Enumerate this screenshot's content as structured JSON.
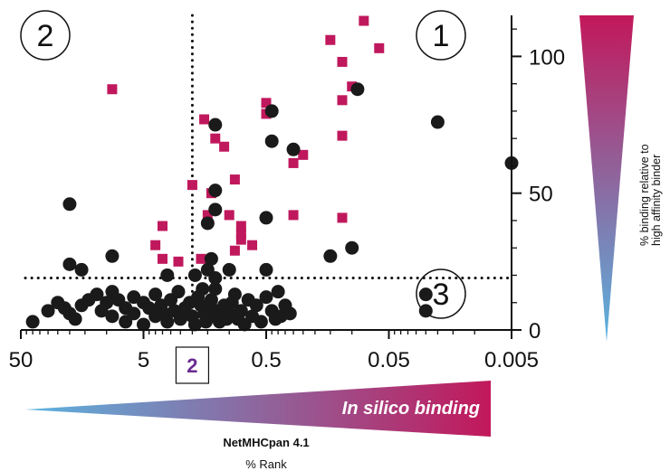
{
  "chart_data": {
    "type": "scatter",
    "x_axis": {
      "scale": "log-reversed",
      "range": [
        50,
        0.005
      ],
      "ticks": [
        50,
        5,
        0.5,
        0.05,
        0.005
      ],
      "tick_labels": [
        "50",
        "5",
        "0.5",
        "0.05",
        "0.005"
      ],
      "highlighted_tick": "2",
      "highlighted_tick_value": 2,
      "gradient_label": "In silico binding",
      "label_line1": "NetMHCpan 4.1",
      "label_line2": "% Rank"
    },
    "y_axis": {
      "range": [
        0,
        115
      ],
      "ticks": [
        0,
        50,
        100
      ],
      "tick_labels": [
        "0",
        "50",
        "100"
      ],
      "position": "right",
      "label_line1": "% binding relative to",
      "label_line2": "high affinity binder"
    },
    "thresholds": {
      "x": 2,
      "y": 19
    },
    "regions": [
      "1",
      "2",
      "3"
    ],
    "colors": {
      "circle": "#1a1a1a",
      "square": "#c0185c",
      "gradient_low": "#5ab4e0",
      "gradient_high": "#c2185b"
    },
    "series": [
      {
        "marker": "square",
        "points": [
          [
            0.08,
            113
          ],
          [
            0.15,
            106
          ],
          [
            0.06,
            103
          ],
          [
            0.12,
            98
          ],
          [
            0.1,
            89
          ],
          [
            9,
            88
          ],
          [
            0.5,
            83
          ],
          [
            0.5,
            79
          ],
          [
            0.12,
            84
          ],
          [
            1.6,
            77
          ],
          [
            1.3,
            70
          ],
          [
            1.1,
            67
          ],
          [
            0.12,
            71
          ],
          [
            0.25,
            64
          ],
          [
            0.3,
            61
          ],
          [
            2,
            53
          ],
          [
            1.4,
            50
          ],
          [
            0.9,
            55
          ],
          [
            1.5,
            42
          ],
          [
            1.0,
            42
          ],
          [
            0.3,
            42
          ],
          [
            0.12,
            41
          ],
          [
            3.5,
            38
          ],
          [
            0.8,
            38
          ],
          [
            0.8,
            35
          ],
          [
            0.8,
            33
          ],
          [
            4,
            31
          ],
          [
            0.9,
            29
          ],
          [
            0.65,
            31
          ],
          [
            3.5,
            26
          ],
          [
            2.6,
            25
          ],
          [
            1.7,
            26
          ]
        ]
      },
      {
        "marker": "circle",
        "points": [
          [
            0.09,
            88
          ],
          [
            0.45,
            80
          ],
          [
            1.3,
            75
          ],
          [
            0.02,
            76
          ],
          [
            0.45,
            69
          ],
          [
            0.3,
            66
          ],
          [
            0.005,
            61
          ],
          [
            1.3,
            51
          ],
          [
            20,
            46
          ],
          [
            1.3,
            44
          ],
          [
            0.5,
            41
          ],
          [
            1.5,
            39
          ],
          [
            0.1,
            30
          ],
          [
            0.15,
            27
          ],
          [
            1.4,
            26
          ],
          [
            9,
            27
          ],
          [
            20,
            24
          ],
          [
            16,
            22
          ],
          [
            1.5,
            22
          ],
          [
            1.0,
            22
          ],
          [
            0.5,
            22
          ],
          [
            3.2,
            20
          ],
          [
            1.9,
            20
          ],
          [
            1.3,
            19
          ],
          [
            0.025,
            13
          ],
          [
            0.025,
            7
          ],
          [
            25,
            10
          ],
          [
            22,
            8
          ],
          [
            20,
            6
          ],
          [
            18,
            4
          ],
          [
            16,
            9
          ],
          [
            14,
            11
          ],
          [
            12,
            13
          ],
          [
            11,
            7
          ],
          [
            10,
            10
          ],
          [
            9,
            14
          ],
          [
            9,
            5
          ],
          [
            8,
            11
          ],
          [
            7,
            8
          ],
          [
            7,
            3
          ],
          [
            6,
            12
          ],
          [
            6,
            6
          ],
          [
            5,
            10
          ],
          [
            5,
            2
          ],
          [
            4.5,
            8
          ],
          [
            4,
            5
          ],
          [
            4,
            13
          ],
          [
            3.6,
            9
          ],
          [
            3.4,
            6
          ],
          [
            3.2,
            3
          ],
          [
            3,
            11
          ],
          [
            2.8,
            7
          ],
          [
            2.6,
            14
          ],
          [
            2.5,
            4
          ],
          [
            2.3,
            8
          ],
          [
            2.1,
            10
          ],
          [
            2,
            5
          ],
          [
            1.9,
            2
          ],
          [
            1.8,
            12
          ],
          [
            1.7,
            9
          ],
          [
            1.6,
            6
          ],
          [
            1.55,
            3
          ],
          [
            1.5,
            8
          ],
          [
            1.4,
            11
          ],
          [
            1.35,
            5
          ],
          [
            1.3,
            15
          ],
          [
            1.25,
            7
          ],
          [
            1.2,
            3
          ],
          [
            1.1,
            9
          ],
          [
            1.05,
            4
          ],
          [
            1.0,
            6
          ],
          [
            0.95,
            10
          ],
          [
            0.9,
            13
          ],
          [
            0.85,
            4
          ],
          [
            0.8,
            7
          ],
          [
            0.75,
            2
          ],
          [
            0.7,
            11
          ],
          [
            0.65,
            5
          ],
          [
            0.6,
            9
          ],
          [
            0.55,
            3
          ],
          [
            0.5,
            12
          ],
          [
            0.45,
            7
          ],
          [
            0.4,
            14
          ],
          [
            0.38,
            5
          ],
          [
            0.35,
            9
          ],
          [
            0.32,
            6
          ],
          [
            40,
            3
          ],
          [
            30,
            7
          ],
          [
            0.42,
            4
          ],
          [
            1.65,
            15
          ]
        ]
      }
    ]
  }
}
